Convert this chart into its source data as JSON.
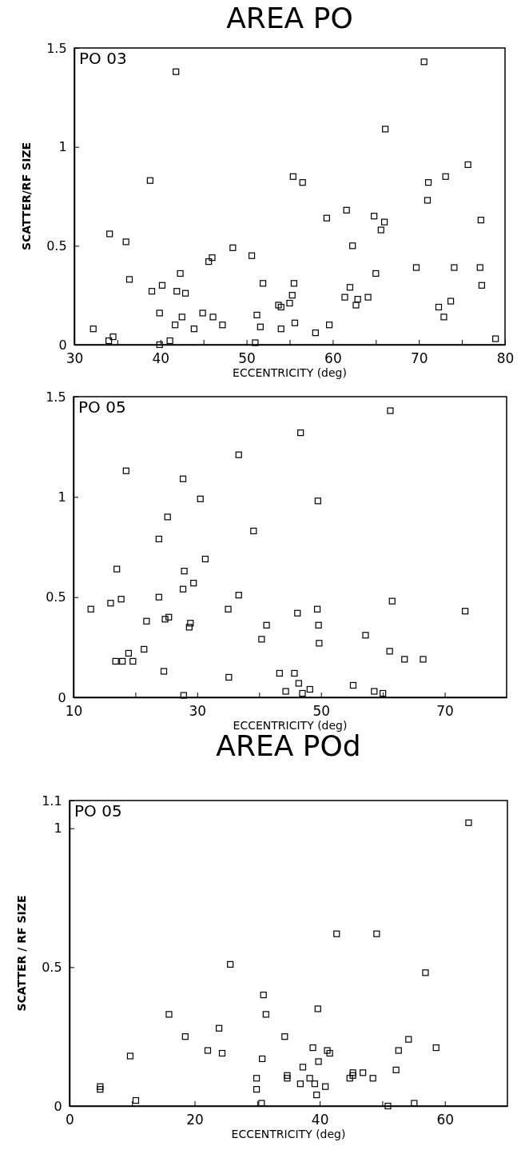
{
  "chart_data": [
    {
      "type": "scatter",
      "title": "AREA PO",
      "xlabel": "ECCENTRICITY (deg)",
      "ylabel": "SCATTER/RF SIZE",
      "annotations": [
        "PO 03"
      ],
      "marker": "square",
      "grid": false,
      "xlim": [
        30,
        80
      ],
      "xticks": [
        30,
        {
          "value": 35,
          "label": null
        },
        40,
        {
          "value": 45,
          "label": null
        },
        50,
        {
          "value": 55,
          "label": null
        },
        60,
        {
          "value": 65,
          "label": null
        },
        70,
        {
          "value": 75,
          "label": null
        },
        80
      ],
      "ylim": [
        0,
        1.5
      ],
      "yticks": [
        0,
        0.5,
        1,
        1.5
      ],
      "series": [
        {
          "color": "#000000",
          "x": [
            32.2,
            34.0,
            34.5,
            34.1,
            36.0,
            36.4,
            38.8,
            39.0,
            40.2,
            39.9,
            39.9,
            41.1,
            41.7,
            41.8,
            41.9,
            42.3,
            42.5,
            42.9,
            43.9,
            44.9,
            45.6,
            46.0,
            46.1,
            47.2,
            48.4,
            50.6,
            51.0,
            51.2,
            51.6,
            51.9,
            53.7,
            54.0,
            54.0,
            55.0,
            55.3,
            55.5,
            55.6,
            55.4,
            56.5,
            58.0,
            59.3,
            59.6,
            61.4,
            61.6,
            62.0,
            62.3,
            62.7,
            62.9,
            64.1,
            64.8,
            65.0,
            65.6,
            66.0,
            66.1,
            69.7,
            70.6,
            71.0,
            71.1,
            72.3,
            72.9,
            73.1,
            73.7,
            74.1,
            75.7,
            77.1,
            77.2,
            77.3,
            78.9
          ],
          "values": [
            0.08,
            0.02,
            0.04,
            0.56,
            0.52,
            0.33,
            0.83,
            0.27,
            0.3,
            0.16,
            0.0,
            0.02,
            0.1,
            1.38,
            0.27,
            0.36,
            0.14,
            0.26,
            0.08,
            0.16,
            0.42,
            0.44,
            0.14,
            0.1,
            0.49,
            0.45,
            0.01,
            0.15,
            0.09,
            0.31,
            0.2,
            0.19,
            0.08,
            0.21,
            0.25,
            0.31,
            0.11,
            0.85,
            0.82,
            0.06,
            0.64,
            0.1,
            0.24,
            0.68,
            0.29,
            0.5,
            0.2,
            0.23,
            0.24,
            0.65,
            0.36,
            0.58,
            0.62,
            1.09,
            0.39,
            1.43,
            0.73,
            0.82,
            0.19,
            0.14,
            0.85,
            0.22,
            0.39,
            0.91,
            0.39,
            0.63,
            0.3,
            0.03
          ]
        }
      ]
    },
    {
      "type": "scatter",
      "xlabel": "ECCENTRICITY (deg)",
      "annotations": [
        "PO 05"
      ],
      "marker": "square",
      "grid": false,
      "xlim": [
        10,
        80
      ],
      "xticks": [
        10,
        {
          "value": 20,
          "label": null
        },
        30,
        {
          "value": 40,
          "label": null
        },
        50,
        {
          "value": 60,
          "label": null
        },
        70
      ],
      "ylim": [
        0,
        1.5
      ],
      "yticks": [
        0,
        0.5,
        1,
        1.5
      ],
      "series": [
        {
          "color": "#000000",
          "x": [
            12.8,
            16.0,
            17.0,
            16.8,
            17.7,
            17.9,
            18.5,
            18.9,
            19.6,
            21.4,
            21.8,
            23.8,
            23.8,
            24.6,
            24.8,
            25.2,
            25.4,
            27.7,
            27.7,
            27.9,
            27.8,
            28.9,
            28.7,
            29.4,
            30.5,
            31.3,
            35.0,
            35.1,
            36.7,
            36.7,
            39.1,
            40.4,
            41.2,
            43.3,
            44.3,
            45.7,
            46.2,
            46.4,
            46.7,
            47.0,
            48.2,
            49.4,
            49.6,
            49.5,
            49.7,
            55.2,
            57.2,
            58.6,
            60.0,
            61.1,
            61.5,
            61.2,
            63.5,
            66.5,
            73.3
          ],
          "values": [
            0.44,
            0.47,
            0.64,
            0.18,
            0.49,
            0.18,
            1.13,
            0.22,
            0.18,
            0.24,
            0.38,
            0.79,
            0.5,
            0.13,
            0.39,
            0.9,
            0.4,
            1.09,
            0.54,
            0.63,
            0.01,
            0.37,
            0.35,
            0.57,
            0.99,
            0.69,
            0.44,
            0.1,
            0.51,
            1.21,
            0.83,
            0.29,
            0.36,
            0.12,
            0.03,
            0.12,
            0.42,
            0.07,
            1.32,
            0.02,
            0.04,
            0.44,
            0.36,
            0.98,
            0.27,
            0.06,
            0.31,
            0.03,
            0.02,
            0.23,
            0.48,
            1.43,
            0.19,
            0.19,
            0.43
          ]
        }
      ]
    },
    {
      "type": "scatter",
      "title": "AREA POd",
      "xlabel": "ECCENTRICITY (deg)",
      "ylabel": "SCATTER / RF SIZE",
      "annotations": [
        "PO 05"
      ],
      "marker": "square",
      "grid": false,
      "xlim": [
        0,
        70
      ],
      "xticks": [
        0,
        {
          "value": 10,
          "label": null
        },
        20,
        {
          "value": 30,
          "label": null
        },
        40,
        {
          "value": 50,
          "label": null
        },
        60
      ],
      "ylim": [
        0,
        1.1
      ],
      "yticks": [
        0,
        0.5,
        1,
        1.1
      ],
      "series": [
        {
          "color": "#000000",
          "x": [
            4.9,
            4.9,
            9.7,
            10.6,
            15.9,
            18.5,
            22.1,
            23.9,
            24.4,
            25.7,
            29.9,
            29.9,
            30.7,
            30.8,
            31.0,
            31.4,
            34.4,
            34.8,
            34.8,
            36.9,
            37.3,
            38.4,
            38.9,
            39.2,
            39.5,
            39.7,
            39.8,
            40.9,
            41.2,
            41.6,
            42.7,
            44.8,
            45.3,
            45.3,
            46.9,
            48.5,
            49.1,
            50.9,
            52.2,
            52.6,
            54.2,
            55.1,
            56.9,
            58.6,
            63.8
          ],
          "values": [
            0.07,
            0.06,
            0.18,
            0.02,
            0.33,
            0.25,
            0.2,
            0.28,
            0.19,
            0.51,
            0.1,
            0.06,
            0.01,
            0.17,
            0.4,
            0.33,
            0.25,
            0.11,
            0.1,
            0.08,
            0.14,
            0.1,
            0.21,
            0.08,
            0.04,
            0.35,
            0.16,
            0.07,
            0.2,
            0.19,
            0.62,
            0.1,
            0.12,
            0.11,
            0.12,
            0.1,
            0.62,
            0.0,
            0.13,
            0.2,
            0.24,
            0.01,
            0.48,
            0.21,
            1.02
          ]
        }
      ]
    }
  ]
}
